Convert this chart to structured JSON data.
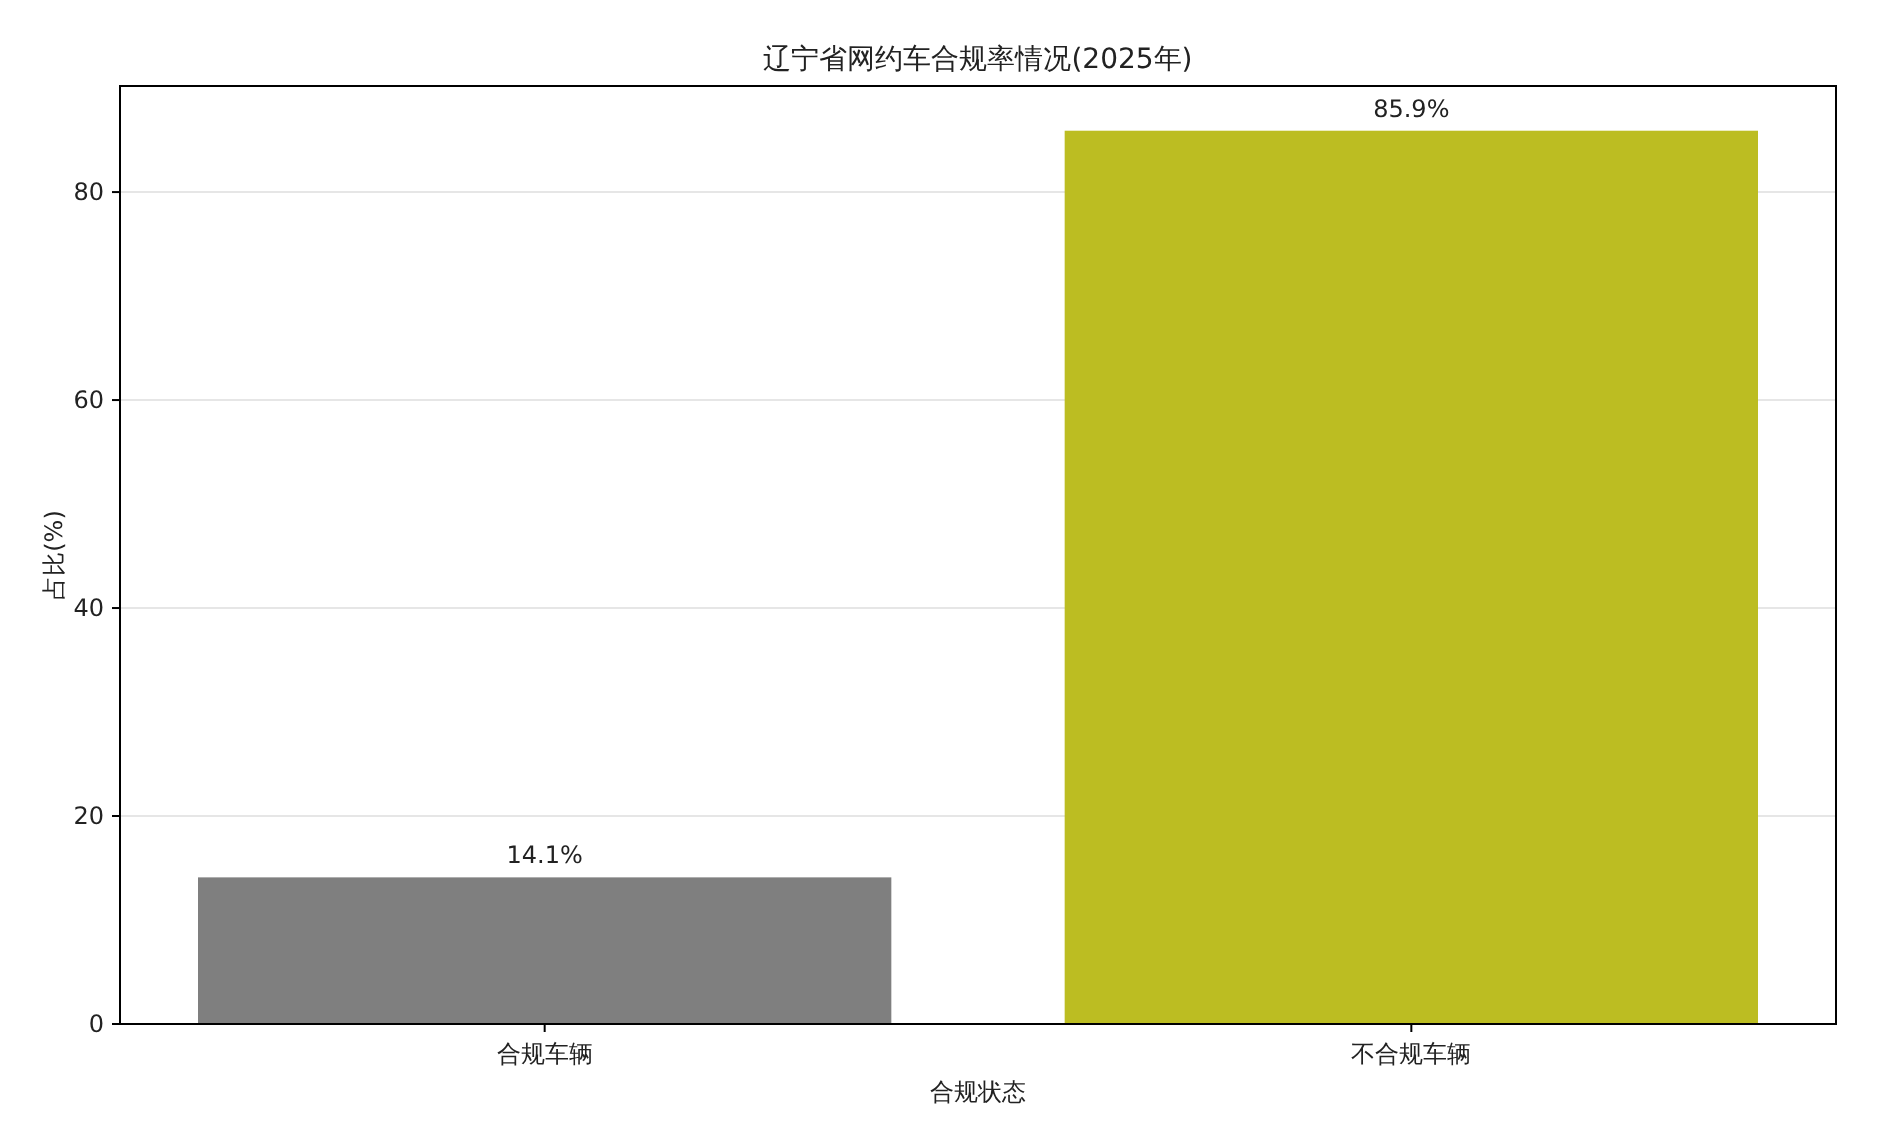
{
  "chart_data": {
    "type": "bar",
    "title": "辽宁省网约车合规率情况(2025年)",
    "xlabel": "合规状态",
    "ylabel": "占比(%)",
    "categories": [
      "合规车辆",
      "不合规车辆"
    ],
    "values": [
      14.1,
      85.9
    ],
    "colors": [
      "#7f7f7f",
      "#bcbd22"
    ],
    "value_labels": [
      "14.1%",
      "85.9%"
    ],
    "ylim": [
      0,
      90.2
    ],
    "yticks": [
      0,
      20,
      40,
      60,
      80
    ],
    "grid": "y"
  }
}
